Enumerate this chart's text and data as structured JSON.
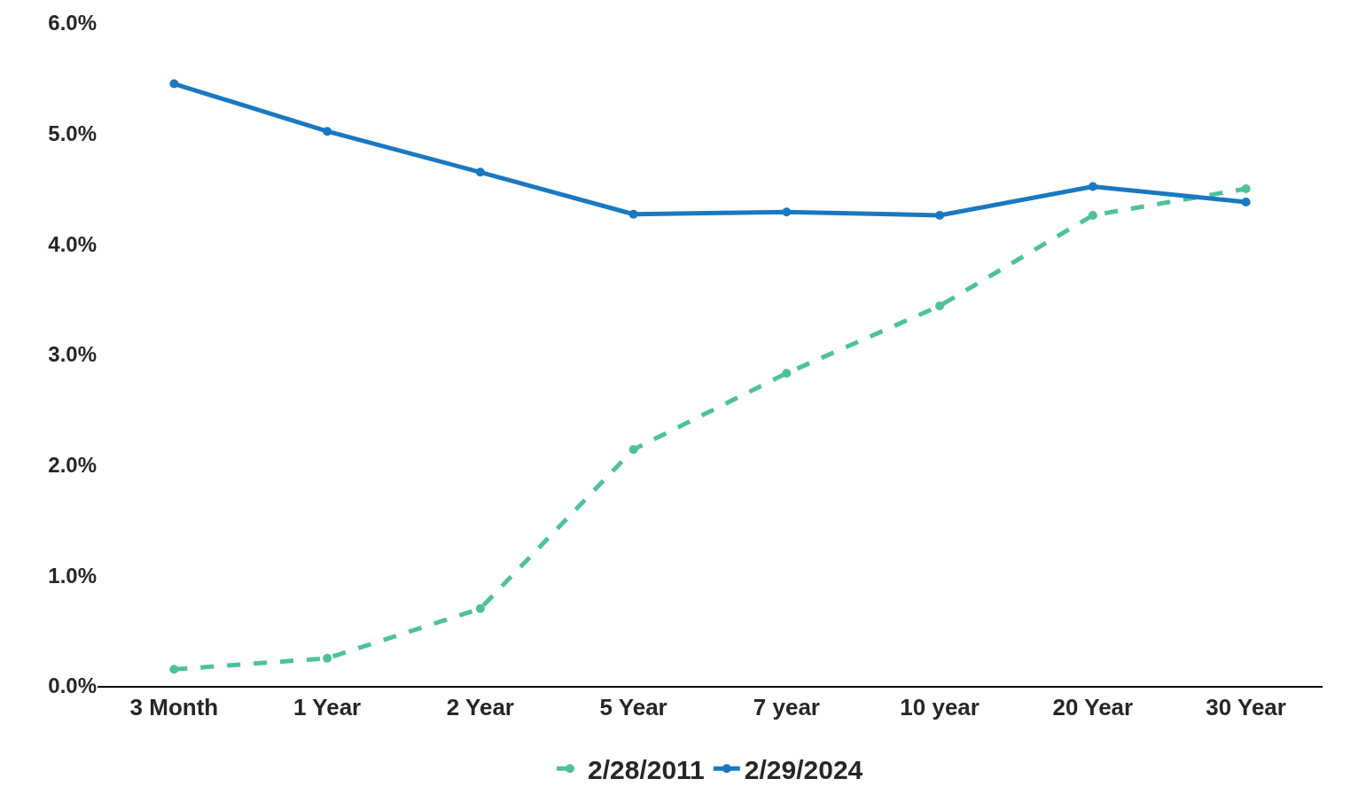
{
  "chart_data": {
    "type": "line",
    "categories": [
      "3 Month",
      "1 Year",
      "2 Year",
      "5 Year",
      "7 year",
      "10 year",
      "20 Year",
      "30 Year"
    ],
    "series": [
      {
        "name": "2/28/2011",
        "color": "#4dc29a",
        "line_style": "dashed",
        "values": [
          0.15,
          0.25,
          0.7,
          2.14,
          2.83,
          3.44,
          4.26,
          4.5
        ]
      },
      {
        "name": "2/29/2024",
        "color": "#1a78c2",
        "line_style": "solid",
        "values": [
          5.45,
          5.02,
          4.65,
          4.27,
          4.29,
          4.26,
          4.52,
          4.38
        ]
      }
    ],
    "ylim": [
      0,
      6
    ],
    "yticks": [
      {
        "value": 0,
        "label": "0.0%"
      },
      {
        "value": 1,
        "label": "1.0%"
      },
      {
        "value": 2,
        "label": "2.0%"
      },
      {
        "value": 3,
        "label": "3.0%"
      },
      {
        "value": 4,
        "label": "4.0%"
      },
      {
        "value": 5,
        "label": "5.0%"
      },
      {
        "value": 6,
        "label": "6.0%"
      }
    ],
    "legend": "bottom",
    "marker": "circle"
  }
}
